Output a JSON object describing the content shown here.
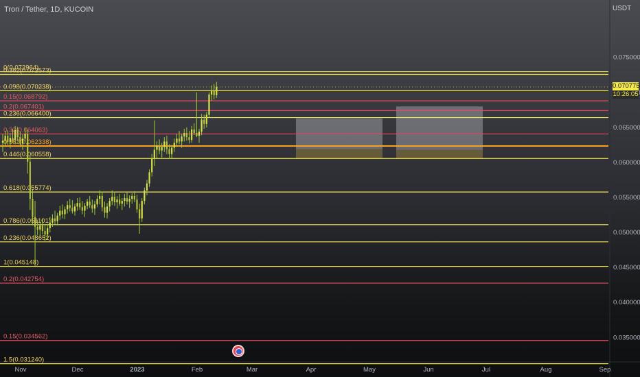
{
  "header": {
    "symbol_title": "Tron / Tether, 1D, KUCOIN",
    "currency": "USDT"
  },
  "last_price": {
    "value": "0.070775",
    "countdown": "10:26:05",
    "price": 0.070775
  },
  "colors": {
    "fib_yellow": "#f5e94b",
    "fib_red": "#e84a5f",
    "fib_orange": "#ff9f1c",
    "candle_up": "#d6e04a",
    "candle_wick": "#9acd32",
    "label_yellow": "#f0d260",
    "label_red": "#e85a64",
    "axis_text": "#b2b5be"
  },
  "event_icon": "us-flag-event-icon",
  "chart_data": {
    "type": "candlestick",
    "title": "Tron / Tether, 1D, KUCOIN",
    "xlabel": "",
    "ylabel": "USDT",
    "ylim": [
      0.0315,
      0.0832
    ],
    "x_ticks": [
      "Nov",
      "Dec",
      "2023",
      "Feb",
      "Mar",
      "Apr",
      "May",
      "Jun",
      "Jul",
      "Aug",
      "Sep"
    ],
    "y_ticks": [
      "0.075000",
      "0.070000",
      "0.065000",
      "0.060000",
      "0.055000",
      "0.050000",
      "0.045000",
      "0.040000",
      "0.035000"
    ],
    "y_tick_values": [
      0.075,
      0.07,
      0.065,
      0.06,
      0.055,
      0.05,
      0.045,
      0.04,
      0.035
    ],
    "fib_levels": [
      {
        "label": "0(0.072964)",
        "value": 0.072964,
        "color": "yellow"
      },
      {
        "label": "0.382(0.072573)",
        "value": 0.072573,
        "color": "yellow"
      },
      {
        "label": "0.098(0.070238)",
        "value": 0.070238,
        "color": "yellow"
      },
      {
        "label": "0.15(0.068792)",
        "value": 0.068792,
        "color": "red"
      },
      {
        "label": "0.2(0.067401)",
        "value": 0.067401,
        "color": "red"
      },
      {
        "label": "0.236(0.066400)",
        "value": 0.0664,
        "color": "yellow"
      },
      {
        "label": "0.32(0.064063)",
        "value": 0.064063,
        "color": "red"
      },
      {
        "label": "0.382(0.062338)",
        "value": 0.062338,
        "color": "orange"
      },
      {
        "label": "0.446(0.060558)",
        "value": 0.060558,
        "color": "yellow"
      },
      {
        "label": "0.618(0.055774)",
        "value": 0.055774,
        "color": "yellow"
      },
      {
        "label": "0.786(0.051101)",
        "value": 0.051101,
        "color": "yellow"
      },
      {
        "label": "0.236(0.048652)",
        "value": 0.048652,
        "color": "yellow"
      },
      {
        "label": "1(0.045148)",
        "value": 0.045148,
        "color": "yellow"
      },
      {
        "label": "0.2(0.042754)",
        "value": 0.042754,
        "color": "red"
      },
      {
        "label": "0.15(0.034562)",
        "value": 0.034562,
        "color": "red"
      },
      {
        "label": "1.5(0.031240)",
        "value": 0.03124,
        "color": "yellow"
      }
    ],
    "zones": [
      {
        "from": "Apr",
        "to": "May",
        "top": 0.0663,
        "mid": 0.0619,
        "bottom": 0.0606
      },
      {
        "from": "Jun",
        "to": "Jul",
        "top": 0.068,
        "mid": 0.0618,
        "bottom": 0.0606
      }
    ],
    "candles": [
      [
        0.0628,
        0.0641,
        0.0615,
        0.0631
      ],
      [
        0.0631,
        0.0645,
        0.0622,
        0.0638
      ],
      [
        0.0638,
        0.0646,
        0.0625,
        0.0629
      ],
      [
        0.0629,
        0.0642,
        0.062,
        0.0635
      ],
      [
        0.0635,
        0.0648,
        0.0628,
        0.0632
      ],
      [
        0.0632,
        0.0652,
        0.0626,
        0.0646
      ],
      [
        0.0646,
        0.0651,
        0.063,
        0.0636
      ],
      [
        0.0636,
        0.0644,
        0.0622,
        0.0627
      ],
      [
        0.0627,
        0.064,
        0.0618,
        0.0634
      ],
      [
        0.0634,
        0.065,
        0.0629,
        0.0641
      ],
      [
        0.0641,
        0.0646,
        0.0584,
        0.0601
      ],
      [
        0.0601,
        0.061,
        0.0532,
        0.0548
      ],
      [
        0.0548,
        0.0562,
        0.051,
        0.0522
      ],
      [
        0.0522,
        0.0545,
        0.0452,
        0.0508
      ],
      [
        0.0508,
        0.0518,
        0.0496,
        0.0504
      ],
      [
        0.0504,
        0.0515,
        0.0494,
        0.051
      ],
      [
        0.051,
        0.052,
        0.0497,
        0.0502
      ],
      [
        0.0502,
        0.0511,
        0.0488,
        0.0497
      ],
      [
        0.0497,
        0.0512,
        0.049,
        0.0506
      ],
      [
        0.0506,
        0.0522,
        0.05,
        0.0514
      ],
      [
        0.0514,
        0.0526,
        0.0508,
        0.052
      ],
      [
        0.052,
        0.0531,
        0.0511,
        0.0516
      ],
      [
        0.0516,
        0.0528,
        0.051,
        0.0524
      ],
      [
        0.0524,
        0.0538,
        0.0518,
        0.0531
      ],
      [
        0.0531,
        0.054,
        0.052,
        0.0526
      ],
      [
        0.0526,
        0.0537,
        0.0519,
        0.0533
      ],
      [
        0.0533,
        0.0545,
        0.0527,
        0.0539
      ],
      [
        0.0539,
        0.0548,
        0.053,
        0.0535
      ],
      [
        0.0535,
        0.0546,
        0.0527,
        0.053
      ],
      [
        0.053,
        0.0541,
        0.0524,
        0.0537
      ],
      [
        0.0537,
        0.0549,
        0.0531,
        0.0542
      ],
      [
        0.0542,
        0.055,
        0.0532,
        0.0536
      ],
      [
        0.0536,
        0.0545,
        0.0526,
        0.0531
      ],
      [
        0.0531,
        0.0542,
        0.0522,
        0.0538
      ],
      [
        0.0538,
        0.0548,
        0.0533,
        0.0544
      ],
      [
        0.0544,
        0.0552,
        0.0535,
        0.0539
      ],
      [
        0.0539,
        0.0547,
        0.0528,
        0.0534
      ],
      [
        0.0534,
        0.0545,
        0.0525,
        0.054
      ],
      [
        0.054,
        0.0553,
        0.0536,
        0.0548
      ],
      [
        0.0548,
        0.056,
        0.054,
        0.0552
      ],
      [
        0.0552,
        0.0558,
        0.053,
        0.0536
      ],
      [
        0.0536,
        0.0544,
        0.0521,
        0.0528
      ],
      [
        0.0528,
        0.0542,
        0.052,
        0.0537
      ],
      [
        0.0537,
        0.0549,
        0.053,
        0.0545
      ],
      [
        0.0545,
        0.056,
        0.0539,
        0.0551
      ],
      [
        0.0551,
        0.0558,
        0.0538,
        0.0543
      ],
      [
        0.0543,
        0.0552,
        0.0534,
        0.0547
      ],
      [
        0.0547,
        0.0555,
        0.0538,
        0.0541
      ],
      [
        0.0541,
        0.0549,
        0.0532,
        0.0545
      ],
      [
        0.0545,
        0.0555,
        0.0537,
        0.0549
      ],
      [
        0.0549,
        0.0557,
        0.054,
        0.0544
      ],
      [
        0.0544,
        0.0553,
        0.0535,
        0.0548
      ],
      [
        0.0548,
        0.0556,
        0.0541,
        0.0552
      ],
      [
        0.0552,
        0.0559,
        0.0543,
        0.0547
      ],
      [
        0.0547,
        0.0554,
        0.0528,
        0.0533
      ],
      [
        0.0533,
        0.0541,
        0.0498,
        0.052
      ],
      [
        0.052,
        0.0549,
        0.0515,
        0.0545
      ],
      [
        0.0545,
        0.0564,
        0.054,
        0.056
      ],
      [
        0.056,
        0.0575,
        0.0553,
        0.057
      ],
      [
        0.057,
        0.059,
        0.0565,
        0.0586
      ],
      [
        0.0586,
        0.0612,
        0.058,
        0.0605
      ],
      [
        0.0605,
        0.066,
        0.0595,
        0.0618
      ],
      [
        0.0618,
        0.063,
        0.0606,
        0.0624
      ],
      [
        0.0624,
        0.0633,
        0.0612,
        0.0617
      ],
      [
        0.0617,
        0.0628,
        0.0607,
        0.0622
      ],
      [
        0.0622,
        0.0636,
        0.0615,
        0.063
      ],
      [
        0.063,
        0.0638,
        0.0612,
        0.0619
      ],
      [
        0.0619,
        0.0626,
        0.0605,
        0.0612
      ],
      [
        0.0612,
        0.0625,
        0.0605,
        0.0621
      ],
      [
        0.0621,
        0.0634,
        0.0615,
        0.0628
      ],
      [
        0.0628,
        0.0641,
        0.0622,
        0.0634
      ],
      [
        0.0634,
        0.0645,
        0.0626,
        0.063
      ],
      [
        0.063,
        0.0641,
        0.0621,
        0.0637
      ],
      [
        0.0637,
        0.0648,
        0.063,
        0.0642
      ],
      [
        0.0642,
        0.065,
        0.0631,
        0.0636
      ],
      [
        0.0636,
        0.0645,
        0.0627,
        0.0632
      ],
      [
        0.0632,
        0.0652,
        0.0628,
        0.0647
      ],
      [
        0.0647,
        0.0656,
        0.0639,
        0.0642
      ],
      [
        0.0642,
        0.07,
        0.0636,
        0.0638
      ],
      [
        0.0638,
        0.0648,
        0.0628,
        0.0644
      ],
      [
        0.0644,
        0.0669,
        0.0639,
        0.0661
      ],
      [
        0.0661,
        0.0668,
        0.0648,
        0.0655
      ],
      [
        0.0655,
        0.0672,
        0.065,
        0.0668
      ],
      [
        0.0668,
        0.07,
        0.0664,
        0.0697
      ],
      [
        0.0697,
        0.071,
        0.0688,
        0.0702
      ],
      [
        0.0702,
        0.0712,
        0.069,
        0.0696
      ],
      [
        0.0696,
        0.0715,
        0.0692,
        0.0708
      ]
    ]
  }
}
